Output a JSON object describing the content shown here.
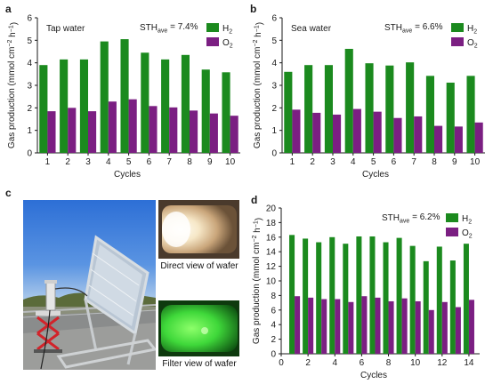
{
  "panels": {
    "c": {
      "label": "c",
      "direct_caption": "Direct view of wafer",
      "filter_caption": "Filter view of wafer"
    }
  },
  "colors": {
    "h2": "#1b8a1e",
    "o2": "#7b1f82",
    "axis": "#1a1a1a"
  },
  "chart_data": [
    {
      "type": "bar",
      "panel_label": "a",
      "corner_label": "Tap water",
      "sth_base": "STH",
      "sth_sub": "ave",
      "sth_value": " = 7.4%",
      "categories": [
        "1",
        "2",
        "3",
        "4",
        "5",
        "6",
        "7",
        "8",
        "9",
        "10"
      ],
      "series": [
        {
          "name_base": "H",
          "name_sub": "2",
          "values": [
            3.9,
            4.15,
            4.15,
            4.95,
            5.05,
            4.45,
            4.15,
            4.35,
            3.7,
            3.58
          ]
        },
        {
          "name_base": "O",
          "name_sub": "2",
          "values": [
            1.85,
            2.0,
            1.85,
            2.28,
            2.38,
            2.08,
            2.02,
            1.88,
            1.75,
            1.65
          ]
        }
      ],
      "xlabel": "Cycles",
      "ylabel_base": "Gas production (mmol cm",
      "ylabel_sup1": "−2",
      "ylabel_mid": " h",
      "ylabel_sup2": "−1",
      "ylabel_end": ")",
      "ylim": [
        0,
        6
      ],
      "yticks": [
        0,
        1,
        2,
        3,
        4,
        5,
        6
      ],
      "legend": "top-right",
      "grid": false
    },
    {
      "type": "bar",
      "panel_label": "b",
      "corner_label": "Sea water",
      "sth_base": "STH",
      "sth_sub": "ave",
      "sth_value": " = 6.6%",
      "categories": [
        "1",
        "2",
        "3",
        "4",
        "5",
        "6",
        "7",
        "8",
        "9",
        "10"
      ],
      "series": [
        {
          "name_base": "H",
          "name_sub": "2",
          "values": [
            3.6,
            3.9,
            3.9,
            4.62,
            3.98,
            3.88,
            4.02,
            3.42,
            3.12,
            3.42
          ]
        },
        {
          "name_base": "O",
          "name_sub": "2",
          "values": [
            1.92,
            1.78,
            1.7,
            1.95,
            1.83,
            1.55,
            1.62,
            1.2,
            1.17,
            1.35
          ]
        }
      ],
      "xlabel": "Cycles",
      "ylabel_base": "Gas production (mmol cm",
      "ylabel_sup1": "−2",
      "ylabel_mid": " h",
      "ylabel_sup2": "−1",
      "ylabel_end": ")",
      "ylim": [
        0,
        6
      ],
      "yticks": [
        0,
        1,
        2,
        3,
        4,
        5,
        6
      ],
      "legend": "top-right",
      "grid": false
    },
    {
      "type": "bar",
      "panel_label": "d",
      "corner_label": "",
      "sth_base": "STH",
      "sth_sub": "ave",
      "sth_value": " = 6.2%",
      "x": [
        1,
        2,
        3,
        4,
        5,
        6,
        7,
        8,
        9,
        10,
        11,
        12,
        13,
        14
      ],
      "xticks": [
        0,
        2,
        4,
        6,
        8,
        10,
        12,
        14
      ],
      "series": [
        {
          "name_base": "H",
          "name_sub": "2",
          "values": [
            16.3,
            15.8,
            15.3,
            16.0,
            15.1,
            16.1,
            16.1,
            15.3,
            15.9,
            14.8,
            12.7,
            14.7,
            12.8,
            15.1
          ]
        },
        {
          "name_base": "O",
          "name_sub": "2",
          "values": [
            7.9,
            7.7,
            7.5,
            7.5,
            7.1,
            7.9,
            7.7,
            7.2,
            7.6,
            7.2,
            6.0,
            7.1,
            6.4,
            7.4
          ]
        }
      ],
      "xlabel": "Cycles",
      "ylabel_base": "Gas production (mmol cm",
      "ylabel_sup1": "−2",
      "ylabel_mid": " h",
      "ylabel_sup2": "−1",
      "ylabel_end": ")",
      "ylim": [
        0,
        20
      ],
      "yticks": [
        0,
        2,
        4,
        6,
        8,
        10,
        12,
        14,
        16,
        18,
        20
      ],
      "legend": "top-right",
      "grid": false
    }
  ]
}
